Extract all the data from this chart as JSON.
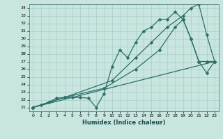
{
  "xlabel": "Humidex (Indice chaleur)",
  "xlim": [
    -0.5,
    23.5
  ],
  "ylim": [
    20.5,
    34.5
  ],
  "xticks": [
    0,
    1,
    2,
    3,
    4,
    5,
    6,
    7,
    8,
    9,
    10,
    11,
    12,
    13,
    14,
    15,
    16,
    17,
    18,
    19,
    20,
    21,
    22,
    23
  ],
  "yticks": [
    21,
    22,
    23,
    24,
    25,
    26,
    27,
    28,
    29,
    30,
    31,
    32,
    33,
    34
  ],
  "background_color": "#c8e6df",
  "grid_color": "#a8cec8",
  "line_color": "#2e6e6a",
  "series": [
    {
      "x": [
        0,
        1,
        2,
        3,
        4,
        5,
        6,
        7,
        8,
        9,
        10,
        11,
        12,
        13,
        14,
        15,
        16,
        17,
        18,
        19,
        20,
        21,
        22,
        23
      ],
      "y": [
        21,
        21.3,
        21.7,
        22.2,
        22.3,
        22.3,
        22.3,
        22.2,
        21.0,
        22.8,
        26.3,
        28.5,
        27.5,
        29.5,
        31.0,
        31.5,
        32.5,
        32.5,
        33.5,
        32.5,
        30.0,
        27.0,
        27.0,
        27.0
      ],
      "marker": "D",
      "markersize": 2.5,
      "linewidth": 0.9
    },
    {
      "x": [
        0,
        4,
        10,
        13,
        15,
        17,
        19,
        20,
        21,
        22,
        23
      ],
      "y": [
        21,
        22.3,
        24.5,
        27.5,
        29.5,
        31.5,
        33.0,
        34.0,
        34.5,
        30.5,
        27.0
      ],
      "marker": "D",
      "markersize": 2.5,
      "linewidth": 0.9
    },
    {
      "x": [
        0,
        23
      ],
      "y": [
        21,
        27
      ],
      "marker": null,
      "markersize": 0,
      "linewidth": 0.9
    },
    {
      "x": [
        0,
        4,
        9,
        13,
        16,
        18,
        19,
        20,
        21,
        22,
        23
      ],
      "y": [
        21,
        22.3,
        23.5,
        26.0,
        28.5,
        31.5,
        32.5,
        30.0,
        27.0,
        25.5,
        27.0
      ],
      "marker": "D",
      "markersize": 2.5,
      "linewidth": 0.9
    }
  ]
}
